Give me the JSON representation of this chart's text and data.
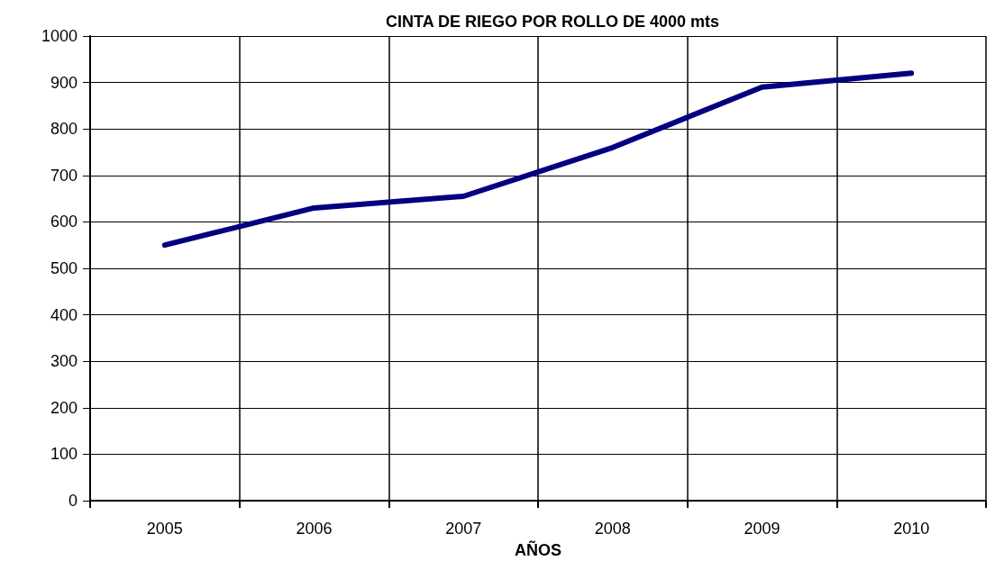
{
  "chart_data": {
    "type": "line",
    "title": "CINTA DE RIEGO POR ROLLO DE 4000 mts",
    "xlabel": "AÑOS",
    "categories": [
      "2005",
      "2006",
      "2007",
      "2008",
      "2009",
      "2010"
    ],
    "series": [
      {
        "color": "#000080",
        "values": [
          550,
          630,
          655,
          760,
          890,
          920
        ]
      }
    ],
    "ylim": [
      0,
      1000
    ],
    "yticks": [
      0,
      100,
      200,
      300,
      400,
      500,
      600,
      700,
      800,
      900,
      1000
    ],
    "grid": true,
    "marker": "none",
    "line_style": "solid"
  }
}
